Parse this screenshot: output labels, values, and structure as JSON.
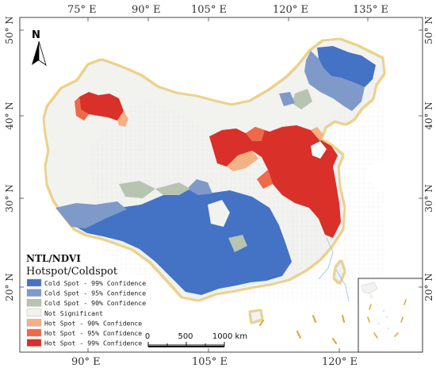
{
  "top_ticks": [
    "75° E",
    "90° E",
    "105° E",
    "120° E",
    "135° E"
  ],
  "bottom_ticks": [
    "90° E",
    "105° E",
    "120° E"
  ],
  "left_ticks": [
    "50° N",
    "40° N",
    "30° N",
    "20° N"
  ],
  "right_ticks": [
    "50° N",
    "40° N",
    "30° N",
    "20° N"
  ],
  "north_label": "N",
  "legend": {
    "title": "NTL/NDVI",
    "subtitle": "Hotspot/Coldspot",
    "items": [
      {
        "label": "Cold Spot - 99% Confidence",
        "color": "#4472c4"
      },
      {
        "label": "Cold Spot - 95% Confidence",
        "color": "#7f9ac9"
      },
      {
        "label": "Cold Spot - 90% Confidence",
        "color": "#b7c4b2"
      },
      {
        "label": "Not Significant",
        "color": "#f2f2ef"
      },
      {
        "label": "Hot Spot - 90% Confidence",
        "color": "#f4b183"
      },
      {
        "label": "Hot Spot - 95% Confidence",
        "color": "#ee6a4a"
      },
      {
        "label": "Hot Spot - 99% Confidence",
        "color": "#d9302a"
      }
    ]
  },
  "scale_bar": {
    "labels": [
      "0",
      "500",
      "1000 km"
    ]
  }
}
